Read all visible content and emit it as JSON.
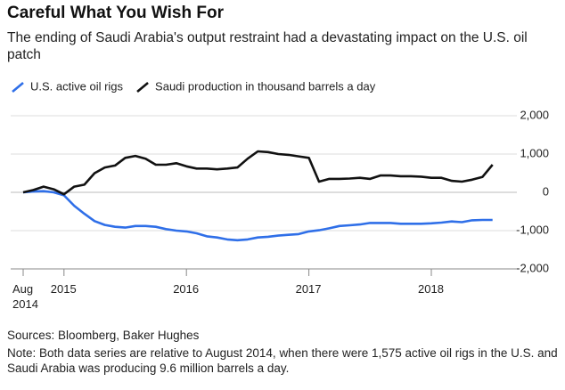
{
  "chart_data": {
    "type": "line",
    "title": "Careful What You Wish For",
    "subtitle": "The ending of Saudi Arabia's output restraint had a devastating impact on the U.S. oil patch",
    "source": "Sources: Bloomberg, Baker Hughes",
    "note": "Note: Both data series are relative to August 2014, when there were 1,575 active oil rigs in the U.S. and Saudi Arabia was producing 9.6 million barrels a day.",
    "categories": [
      "Aug 2014",
      null,
      null,
      null,
      "2015",
      null,
      null,
      null,
      null,
      null,
      null,
      null,
      null,
      null,
      null,
      null,
      "2016",
      null,
      null,
      null,
      null,
      null,
      null,
      null,
      null,
      null,
      null,
      null,
      "2017",
      null,
      null,
      null,
      null,
      null,
      null,
      null,
      null,
      null,
      null,
      null,
      "2018",
      null,
      null,
      null,
      null,
      null,
      null
    ],
    "series": [
      {
        "name": "U.S. active oil rigs",
        "color": "#2f6fe8",
        "values": [
          0,
          20,
          30,
          0,
          -80,
          -350,
          -560,
          -750,
          -850,
          -900,
          -920,
          -880,
          -880,
          -900,
          -960,
          -1000,
          -1020,
          -1070,
          -1150,
          -1180,
          -1230,
          -1250,
          -1230,
          -1180,
          -1160,
          -1130,
          -1110,
          -1090,
          -1020,
          -990,
          -940,
          -880,
          -860,
          -840,
          -800,
          -800,
          -800,
          -820,
          -820,
          -820,
          -810,
          -790,
          -760,
          -780,
          -730,
          -720,
          -720
        ]
      },
      {
        "name": "Saudi production in thousand barrels a day",
        "color": "#111111",
        "values": [
          0,
          60,
          150,
          80,
          -50,
          150,
          200,
          500,
          650,
          700,
          900,
          950,
          880,
          720,
          720,
          760,
          680,
          620,
          620,
          600,
          620,
          650,
          880,
          1070,
          1050,
          1000,
          980,
          940,
          900,
          280,
          350,
          350,
          360,
          380,
          350,
          440,
          440,
          420,
          420,
          410,
          380,
          380,
          300,
          280,
          330,
          400,
          720
        ]
      }
    ],
    "ylim": [
      -2000,
      2000
    ],
    "yticks": [
      {
        "value": -2000,
        "label": "-2,000"
      },
      {
        "value": -1000,
        "label": "-1,000"
      },
      0,
      {
        "value": 1000,
        "label": "1,000"
      },
      {
        "value": 2000,
        "label": "2,000"
      }
    ],
    "grid": true,
    "legend": "top"
  }
}
